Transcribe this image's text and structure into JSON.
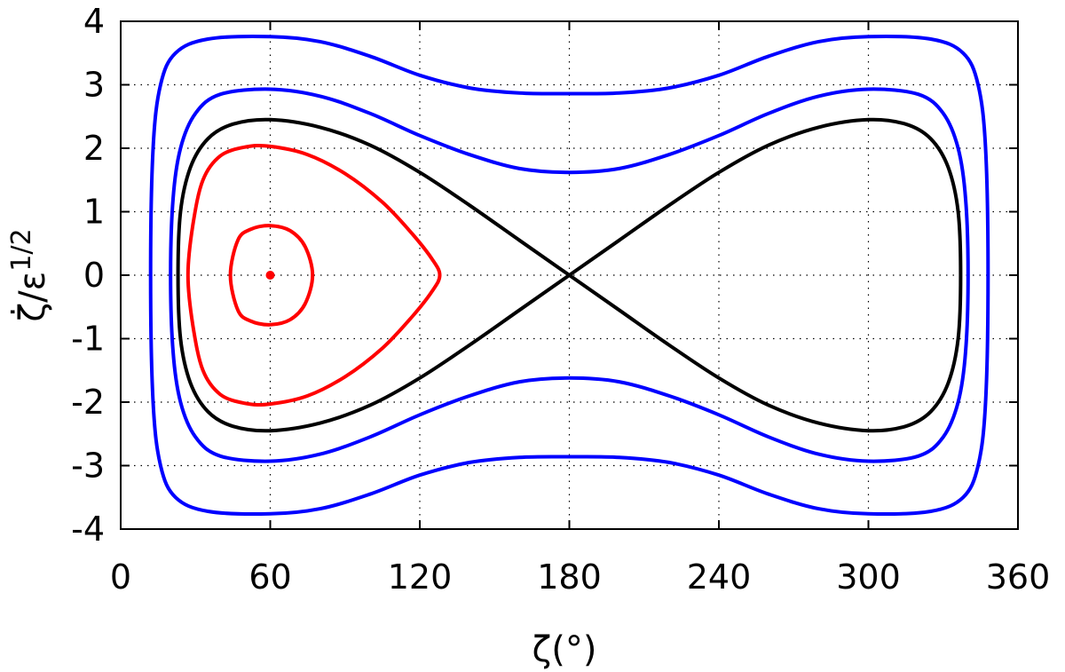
{
  "chart_data": {
    "type": "line",
    "title": "",
    "xlabel": "ζ(°)",
    "ylabel": {
      "base": "ζ̇",
      "slash": "/ε",
      "superscript": "1/2"
    },
    "xlim": [
      0,
      360
    ],
    "ylim": [
      -4,
      4
    ],
    "xticks": [
      0,
      60,
      120,
      180,
      240,
      300,
      360
    ],
    "yticks": [
      -4,
      -3,
      -2,
      -1,
      0,
      1,
      2,
      3,
      4
    ],
    "xtick_labels": [
      "0",
      "60",
      "120",
      "180",
      "240",
      "300",
      "360"
    ],
    "ytick_labels": [
      "-4",
      "-3",
      "-2",
      "-1",
      "0",
      "1",
      "2",
      "3",
      "4"
    ],
    "grid": true,
    "legend": "none",
    "series": [
      {
        "color": "#ff0000",
        "style": "closed-curve",
        "points": [
          [
            44,
            0
          ],
          [
            47,
            0.55
          ],
          [
            52,
            0.72
          ],
          [
            60,
            0.78
          ],
          [
            68,
            0.7
          ],
          [
            74,
            0.45
          ],
          [
            77,
            0
          ],
          [
            74,
            -0.45
          ],
          [
            68,
            -0.7
          ],
          [
            60,
            -0.78
          ],
          [
            52,
            -0.72
          ],
          [
            47,
            -0.55
          ],
          [
            44,
            0
          ]
        ]
      },
      {
        "color": "#ff0000",
        "style": "closed-curve",
        "points": [
          [
            27,
            0
          ],
          [
            29,
            0.8
          ],
          [
            33,
            1.5
          ],
          [
            40,
            1.88
          ],
          [
            50,
            2.02
          ],
          [
            60,
            2.03
          ],
          [
            75,
            1.9
          ],
          [
            90,
            1.6
          ],
          [
            105,
            1.15
          ],
          [
            117,
            0.65
          ],
          [
            125,
            0.25
          ],
          [
            128,
            0
          ],
          [
            125,
            -0.25
          ],
          [
            117,
            -0.65
          ],
          [
            105,
            -1.15
          ],
          [
            90,
            -1.6
          ],
          [
            75,
            -1.9
          ],
          [
            60,
            -2.03
          ],
          [
            50,
            -2.02
          ],
          [
            40,
            -1.88
          ],
          [
            33,
            -1.5
          ],
          [
            29,
            -0.8
          ],
          [
            27,
            0
          ]
        ]
      },
      {
        "color": "#000000",
        "style": "closed-curve",
        "points": [
          [
            180,
            0
          ],
          [
            160,
            0.55
          ],
          [
            140,
            1.1
          ],
          [
            120,
            1.62
          ],
          [
            100,
            2.05
          ],
          [
            80,
            2.33
          ],
          [
            60,
            2.45
          ],
          [
            45,
            2.38
          ],
          [
            35,
            2.15
          ],
          [
            28,
            1.7
          ],
          [
            24,
            1.0
          ],
          [
            23,
            0
          ],
          [
            24,
            -1.0
          ],
          [
            28,
            -1.7
          ],
          [
            35,
            -2.15
          ],
          [
            45,
            -2.38
          ],
          [
            60,
            -2.45
          ],
          [
            80,
            -2.33
          ],
          [
            100,
            -2.05
          ],
          [
            120,
            -1.62
          ],
          [
            140,
            -1.1
          ],
          [
            160,
            -0.55
          ],
          [
            180,
            0
          ],
          [
            200,
            0.55
          ],
          [
            220,
            1.1
          ],
          [
            240,
            1.62
          ],
          [
            260,
            2.05
          ],
          [
            280,
            2.33
          ],
          [
            300,
            2.45
          ],
          [
            315,
            2.38
          ],
          [
            325,
            2.15
          ],
          [
            332,
            1.7
          ],
          [
            336,
            1.0
          ],
          [
            337,
            0
          ],
          [
            336,
            -1.0
          ],
          [
            332,
            -1.7
          ],
          [
            325,
            -2.15
          ],
          [
            315,
            -2.38
          ],
          [
            300,
            -2.45
          ],
          [
            280,
            -2.33
          ],
          [
            260,
            -2.05
          ],
          [
            240,
            -1.62
          ],
          [
            220,
            -1.1
          ],
          [
            200,
            -0.55
          ],
          [
            180,
            0
          ]
        ]
      },
      {
        "color": "#0000ff",
        "style": "closed-curve",
        "points": [
          [
            20,
            0
          ],
          [
            21,
            1.2
          ],
          [
            24,
            2.0
          ],
          [
            30,
            2.55
          ],
          [
            40,
            2.85
          ],
          [
            60,
            2.93
          ],
          [
            80,
            2.82
          ],
          [
            100,
            2.55
          ],
          [
            120,
            2.2
          ],
          [
            140,
            1.9
          ],
          [
            160,
            1.68
          ],
          [
            180,
            1.62
          ],
          [
            200,
            1.68
          ],
          [
            220,
            1.9
          ],
          [
            240,
            2.2
          ],
          [
            260,
            2.55
          ],
          [
            280,
            2.82
          ],
          [
            300,
            2.93
          ],
          [
            320,
            2.85
          ],
          [
            330,
            2.55
          ],
          [
            336,
            2.0
          ],
          [
            339,
            1.2
          ],
          [
            340,
            0
          ],
          [
            339,
            -1.2
          ],
          [
            336,
            -2.0
          ],
          [
            330,
            -2.55
          ],
          [
            320,
            -2.85
          ],
          [
            300,
            -2.93
          ],
          [
            280,
            -2.82
          ],
          [
            260,
            -2.55
          ],
          [
            240,
            -2.2
          ],
          [
            220,
            -1.9
          ],
          [
            200,
            -1.68
          ],
          [
            180,
            -1.62
          ],
          [
            160,
            -1.68
          ],
          [
            140,
            -1.9
          ],
          [
            120,
            -2.2
          ],
          [
            100,
            -2.55
          ],
          [
            80,
            -2.82
          ],
          [
            60,
            -2.93
          ],
          [
            40,
            -2.85
          ],
          [
            30,
            -2.55
          ],
          [
            24,
            -2.0
          ],
          [
            21,
            -1.2
          ],
          [
            20,
            0
          ]
        ]
      },
      {
        "color": "#0000ff",
        "style": "closed-curve",
        "points": [
          [
            12,
            0
          ],
          [
            13,
            2.0
          ],
          [
            16,
            3.0
          ],
          [
            22,
            3.5
          ],
          [
            35,
            3.72
          ],
          [
            60,
            3.76
          ],
          [
            80,
            3.68
          ],
          [
            100,
            3.45
          ],
          [
            120,
            3.15
          ],
          [
            140,
            2.95
          ],
          [
            160,
            2.87
          ],
          [
            180,
            2.86
          ],
          [
            200,
            2.87
          ],
          [
            220,
            2.95
          ],
          [
            240,
            3.15
          ],
          [
            260,
            3.45
          ],
          [
            280,
            3.68
          ],
          [
            300,
            3.76
          ],
          [
            325,
            3.72
          ],
          [
            338,
            3.5
          ],
          [
            344,
            3.0
          ],
          [
            347,
            2.0
          ],
          [
            348,
            0
          ],
          [
            347,
            -2.0
          ],
          [
            344,
            -3.0
          ],
          [
            338,
            -3.5
          ],
          [
            325,
            -3.72
          ],
          [
            300,
            -3.76
          ],
          [
            280,
            -3.68
          ],
          [
            260,
            -3.45
          ],
          [
            240,
            -3.15
          ],
          [
            220,
            -2.95
          ],
          [
            200,
            -2.87
          ],
          [
            180,
            -2.86
          ],
          [
            160,
            -2.87
          ],
          [
            140,
            -2.95
          ],
          [
            120,
            -3.15
          ],
          [
            100,
            -3.45
          ],
          [
            80,
            -3.68
          ],
          [
            60,
            -3.76
          ],
          [
            35,
            -3.72
          ],
          [
            22,
            -3.5
          ],
          [
            16,
            -3.0
          ],
          [
            13,
            -2.0
          ],
          [
            12,
            0
          ]
        ]
      }
    ],
    "fixed_point": {
      "x": 60,
      "y": 0,
      "color": "#ff0000"
    }
  }
}
